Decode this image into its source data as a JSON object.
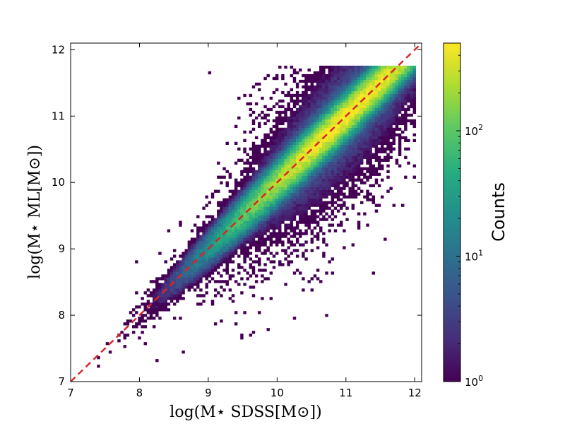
{
  "chart_data": {
    "type": "heatmap",
    "subtype": "2d-histogram",
    "xlabel": "log(M⋆ SDSS[M⊙])",
    "ylabel": "log(M⋆ ML[M⊙])",
    "xlim": [
      7,
      12.1
    ],
    "ylim": [
      7,
      12.1
    ],
    "xticks": [
      "7",
      "8",
      "9",
      "10",
      "11",
      "12"
    ],
    "yticks": [
      "7",
      "8",
      "9",
      "10",
      "11",
      "12"
    ],
    "grid": false,
    "colormap": "viridis",
    "color_scale": "log",
    "colorbar": {
      "label": "Counts",
      "range": [
        1,
        500
      ],
      "ticks": [
        {
          "base": "10",
          "exp": "0",
          "value": 1
        },
        {
          "base": "10",
          "exp": "1",
          "value": 10
        },
        {
          "base": "10",
          "exp": "2",
          "value": 100
        }
      ]
    },
    "density_model": {
      "ridge_slope": 1.0,
      "ridge_intercept": 0.0,
      "peak_count": 500,
      "peak_location": [
        11.0,
        11.0
      ],
      "core_scatter_dex": 0.14,
      "x_range_populated": [
        7.0,
        12.0
      ],
      "saturation_y": 11.78
    },
    "reference_line": {
      "type": "one-to-one",
      "x": [
        7.0,
        12.1
      ],
      "y": [
        7.0,
        12.1
      ],
      "color": "#d62728",
      "style": "dashed"
    }
  }
}
